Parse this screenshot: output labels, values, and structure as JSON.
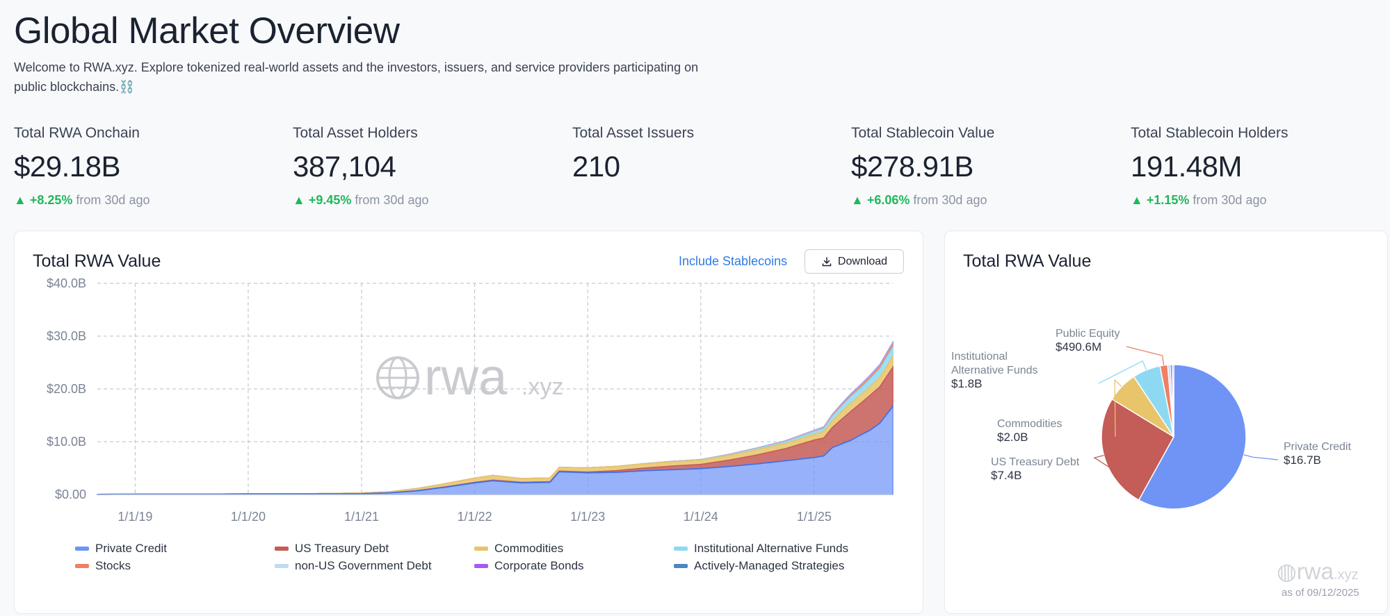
{
  "header": {
    "title": "Global Market Overview",
    "intro": "Welcome to RWA.xyz. Explore tokenized real-world assets and the investors, issuers, and service providers participating on public blockchains.⛓️"
  },
  "stats": [
    {
      "label": "Total RWA Onchain",
      "value": "$29.18B",
      "change": "+8.25%",
      "suffix": "from 30d ago"
    },
    {
      "label": "Total Asset Holders",
      "value": "387,104",
      "change": "+9.45%",
      "suffix": "from 30d ago"
    },
    {
      "label": "Total Asset Issuers",
      "value": "210",
      "change": "",
      "suffix": ""
    },
    {
      "label": "Total Stablecoin Value",
      "value": "$278.91B",
      "change": "+6.06%",
      "suffix": "from 30d ago"
    },
    {
      "label": "Total Stablecoin Holders",
      "value": "191.48M",
      "change": "+1.15%",
      "suffix": "from 30d ago"
    }
  ],
  "area_card": {
    "title": "Total RWA Value",
    "toggle_label": "Include Stablecoins",
    "download_label": "Download",
    "watermark": "rwa",
    "watermark_tld": ".xyz"
  },
  "pie_card": {
    "title": "Total RWA Value",
    "as_of": "as of 09/12/2025",
    "watermark": "rwa",
    "watermark_tld": ".xyz"
  },
  "colors": {
    "private_credit": "#6f94f6",
    "us_treasury": "#c45c57",
    "commodities": "#e8c46a",
    "inst_alt": "#8ed9f2",
    "stocks": "#f07f63",
    "non_us_gov": "#c2d9f2",
    "corp_bonds": "#a45cf0",
    "active_mgmt": "#4a87c4",
    "positive": "#1fb85a"
  },
  "chart_data": [
    {
      "type": "area",
      "title": "Total RWA Value",
      "stacked": true,
      "x_ticks": [
        "1/1/19",
        "1/1/20",
        "1/1/21",
        "1/1/22",
        "1/1/23",
        "1/1/24",
        "1/1/25"
      ],
      "y_ticks": [
        "$0.00",
        "$10.0B",
        "$20.0B",
        "$30.0B",
        "$40.0B"
      ],
      "ylim": [
        0,
        40
      ],
      "y_unit": "$B",
      "x": [
        "2018-09-01",
        "2019-01-01",
        "2019-07-01",
        "2020-01-01",
        "2020-07-01",
        "2021-01-01",
        "2021-04-01",
        "2021-07-01",
        "2021-10-01",
        "2022-01-01",
        "2022-03-01",
        "2022-06-01",
        "2022-09-01",
        "2022-10-01",
        "2023-01-01",
        "2023-04-01",
        "2023-07-01",
        "2023-10-01",
        "2024-01-01",
        "2024-04-01",
        "2024-07-01",
        "2024-10-01",
        "2025-01-01",
        "2025-02-01",
        "2025-03-01",
        "2025-04-01",
        "2025-05-01",
        "2025-06-01",
        "2025-07-01",
        "2025-08-01",
        "2025-09-12"
      ],
      "series": [
        {
          "name": "Private Credit",
          "values": [
            0.02,
            0.05,
            0.08,
            0.1,
            0.12,
            0.15,
            0.3,
            0.7,
            1.4,
            2.2,
            2.6,
            2.2,
            2.3,
            4.3,
            4.1,
            4.2,
            4.5,
            4.7,
            4.9,
            5.3,
            5.8,
            6.4,
            7.0,
            7.3,
            8.9,
            9.6,
            10.3,
            11.3,
            12.2,
            13.5,
            16.7
          ]
        },
        {
          "name": "US Treasury Debt",
          "values": [
            0,
            0,
            0,
            0,
            0,
            0.02,
            0.03,
            0.05,
            0.08,
            0.1,
            0.12,
            0.12,
            0.12,
            0.13,
            0.15,
            0.3,
            0.5,
            0.7,
            0.8,
            1.2,
            1.7,
            2.3,
            3.3,
            3.4,
            3.8,
            4.7,
            5.5,
            6.0,
            6.6,
            6.9,
            7.4
          ]
        },
        {
          "name": "Commodities",
          "values": [
            0,
            0,
            0,
            0,
            0,
            0.1,
            0.2,
            0.4,
            0.6,
            0.8,
            0.9,
            0.7,
            0.7,
            0.7,
            0.8,
            0.8,
            0.8,
            0.8,
            0.8,
            0.9,
            1.0,
            1.0,
            1.1,
            1.2,
            1.3,
            1.5,
            1.6,
            1.6,
            1.7,
            1.8,
            2.0
          ]
        },
        {
          "name": "Institutional Alternative Funds",
          "values": [
            0,
            0,
            0,
            0,
            0,
            0,
            0,
            0,
            0,
            0,
            0,
            0,
            0,
            0,
            0.01,
            0.01,
            0.02,
            0.03,
            0.05,
            0.1,
            0.2,
            0.3,
            0.5,
            0.6,
            0.8,
            1.0,
            1.2,
            1.3,
            1.4,
            1.6,
            1.8
          ]
        },
        {
          "name": "Stocks",
          "values": [
            0,
            0,
            0,
            0,
            0,
            0,
            0,
            0,
            0,
            0,
            0,
            0,
            0,
            0,
            0,
            0,
            0,
            0.01,
            0.01,
            0.02,
            0.03,
            0.05,
            0.08,
            0.1,
            0.15,
            0.2,
            0.25,
            0.3,
            0.35,
            0.4,
            0.49
          ]
        },
        {
          "name": "non-US Government Debt",
          "values": [
            0,
            0,
            0,
            0,
            0,
            0,
            0,
            0,
            0,
            0,
            0,
            0,
            0,
            0,
            0,
            0,
            0.01,
            0.02,
            0.03,
            0.04,
            0.05,
            0.06,
            0.08,
            0.09,
            0.1,
            0.11,
            0.12,
            0.13,
            0.14,
            0.15,
            0.16
          ]
        },
        {
          "name": "Corporate Bonds",
          "values": [
            0,
            0,
            0,
            0,
            0,
            0,
            0,
            0,
            0,
            0,
            0,
            0,
            0,
            0,
            0,
            0,
            0,
            0.01,
            0.02,
            0.03,
            0.04,
            0.05,
            0.06,
            0.07,
            0.08,
            0.09,
            0.1,
            0.11,
            0.12,
            0.13,
            0.14
          ]
        },
        {
          "name": "Actively-Managed Strategies",
          "values": [
            0,
            0,
            0,
            0,
            0,
            0,
            0,
            0,
            0,
            0,
            0,
            0,
            0,
            0,
            0,
            0,
            0,
            0,
            0,
            0,
            0,
            0,
            0.01,
            0.02,
            0.03,
            0.04,
            0.05,
            0.06,
            0.07,
            0.08,
            0.09
          ]
        }
      ],
      "grid": true,
      "legend_position": "bottom"
    },
    {
      "type": "pie",
      "title": "Total RWA Value",
      "slices": [
        {
          "name": "Private Credit",
          "label": "Private Credit",
          "value_label": "$16.7B",
          "value": 16.7
        },
        {
          "name": "US Treasury Debt",
          "label": "US Treasury Debt",
          "value_label": "$7.4B",
          "value": 7.4
        },
        {
          "name": "Commodities",
          "label": "Commodities",
          "value_label": "$2.0B",
          "value": 2.0
        },
        {
          "name": "Institutional Alternative Funds",
          "label": "Institutional Alternative Funds",
          "value_label": "$1.8B",
          "value": 1.8
        },
        {
          "name": "Stocks",
          "label": "Public Equity",
          "value_label": "$490.6M",
          "value": 0.4906
        },
        {
          "name": "non-US Government Debt",
          "label": "",
          "value_label": "",
          "value": 0.16
        },
        {
          "name": "Corporate Bonds",
          "label": "",
          "value_label": "",
          "value": 0.14
        },
        {
          "name": "Actively-Managed Strategies",
          "label": "",
          "value_label": "",
          "value": 0.09
        }
      ]
    }
  ]
}
